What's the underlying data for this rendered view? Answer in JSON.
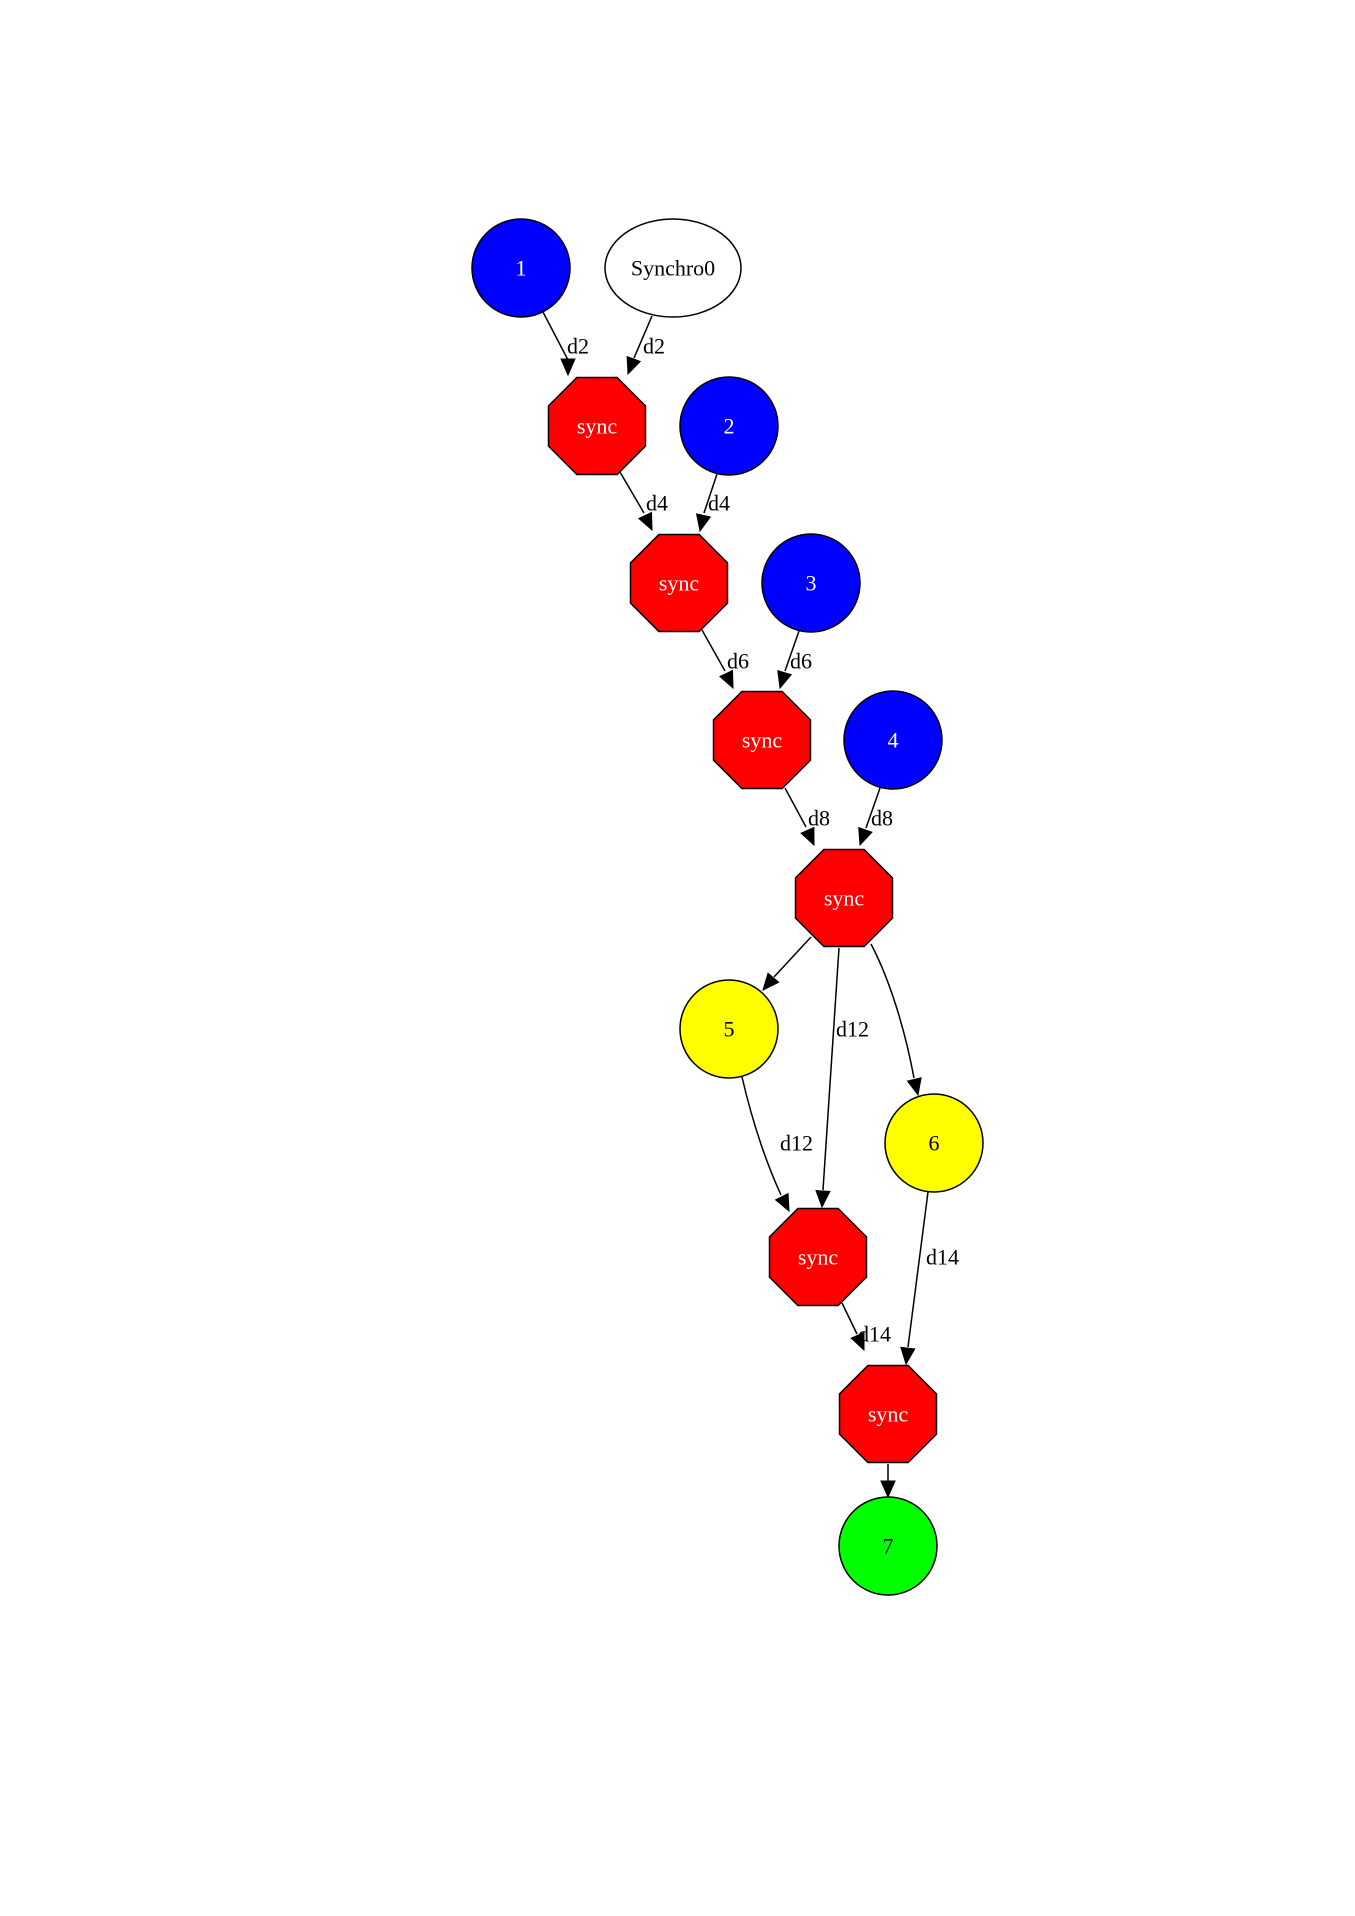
{
  "colors": {
    "blue": "#0000ff",
    "red": "#ff0000",
    "yellow": "#ffff00",
    "green": "#00ff00",
    "white": "#ffffff",
    "black": "#000000"
  },
  "nodes": [
    {
      "id": "n1",
      "label": "1",
      "shape": "circle",
      "fill": "#0000ff",
      "text_color": "#ffffff"
    },
    {
      "id": "synchro0",
      "label": "Synchro0",
      "shape": "ellipse",
      "fill": "#ffffff",
      "text_color": "#000000"
    },
    {
      "id": "s1",
      "label": "sync",
      "shape": "octagon",
      "fill": "#ff0000",
      "text_color": "#ffffff"
    },
    {
      "id": "n2",
      "label": "2",
      "shape": "circle",
      "fill": "#0000ff",
      "text_color": "#ffffff"
    },
    {
      "id": "s2",
      "label": "sync",
      "shape": "octagon",
      "fill": "#ff0000",
      "text_color": "#ffffff"
    },
    {
      "id": "n3",
      "label": "3",
      "shape": "circle",
      "fill": "#0000ff",
      "text_color": "#ffffff"
    },
    {
      "id": "s3",
      "label": "sync",
      "shape": "octagon",
      "fill": "#ff0000",
      "text_color": "#ffffff"
    },
    {
      "id": "n4",
      "label": "4",
      "shape": "circle",
      "fill": "#0000ff",
      "text_color": "#ffffff"
    },
    {
      "id": "s4",
      "label": "sync",
      "shape": "octagon",
      "fill": "#ff0000",
      "text_color": "#ffffff"
    },
    {
      "id": "n5",
      "label": "5",
      "shape": "circle",
      "fill": "#ffff00",
      "text_color": "#000000"
    },
    {
      "id": "n6",
      "label": "6",
      "shape": "circle",
      "fill": "#ffff00",
      "text_color": "#000000"
    },
    {
      "id": "s5",
      "label": "sync",
      "shape": "octagon",
      "fill": "#ff0000",
      "text_color": "#ffffff"
    },
    {
      "id": "s6",
      "label": "sync",
      "shape": "octagon",
      "fill": "#ff0000",
      "text_color": "#ffffff"
    },
    {
      "id": "n7",
      "label": "7",
      "shape": "circle",
      "fill": "#00ff00",
      "text_color": "#000000"
    }
  ],
  "edges": [
    {
      "from": "n1",
      "to": "s1",
      "label": "d2"
    },
    {
      "from": "synchro0",
      "to": "s1",
      "label": "d2"
    },
    {
      "from": "s1",
      "to": "s2",
      "label": "d4"
    },
    {
      "from": "n2",
      "to": "s2",
      "label": "d4"
    },
    {
      "from": "s2",
      "to": "s3",
      "label": "d6"
    },
    {
      "from": "n3",
      "to": "s3",
      "label": "d6"
    },
    {
      "from": "s3",
      "to": "s4",
      "label": "d8"
    },
    {
      "from": "n4",
      "to": "s4",
      "label": "d8"
    },
    {
      "from": "s4",
      "to": "n5",
      "label": ""
    },
    {
      "from": "s4",
      "to": "s5",
      "label": "d12"
    },
    {
      "from": "s4",
      "to": "n6",
      "label": ""
    },
    {
      "from": "n5",
      "to": "s5",
      "label": "d12"
    },
    {
      "from": "s5",
      "to": "s6",
      "label": "d14"
    },
    {
      "from": "n6",
      "to": "s6",
      "label": "d14"
    },
    {
      "from": "s6",
      "to": "n7",
      "label": ""
    }
  ]
}
